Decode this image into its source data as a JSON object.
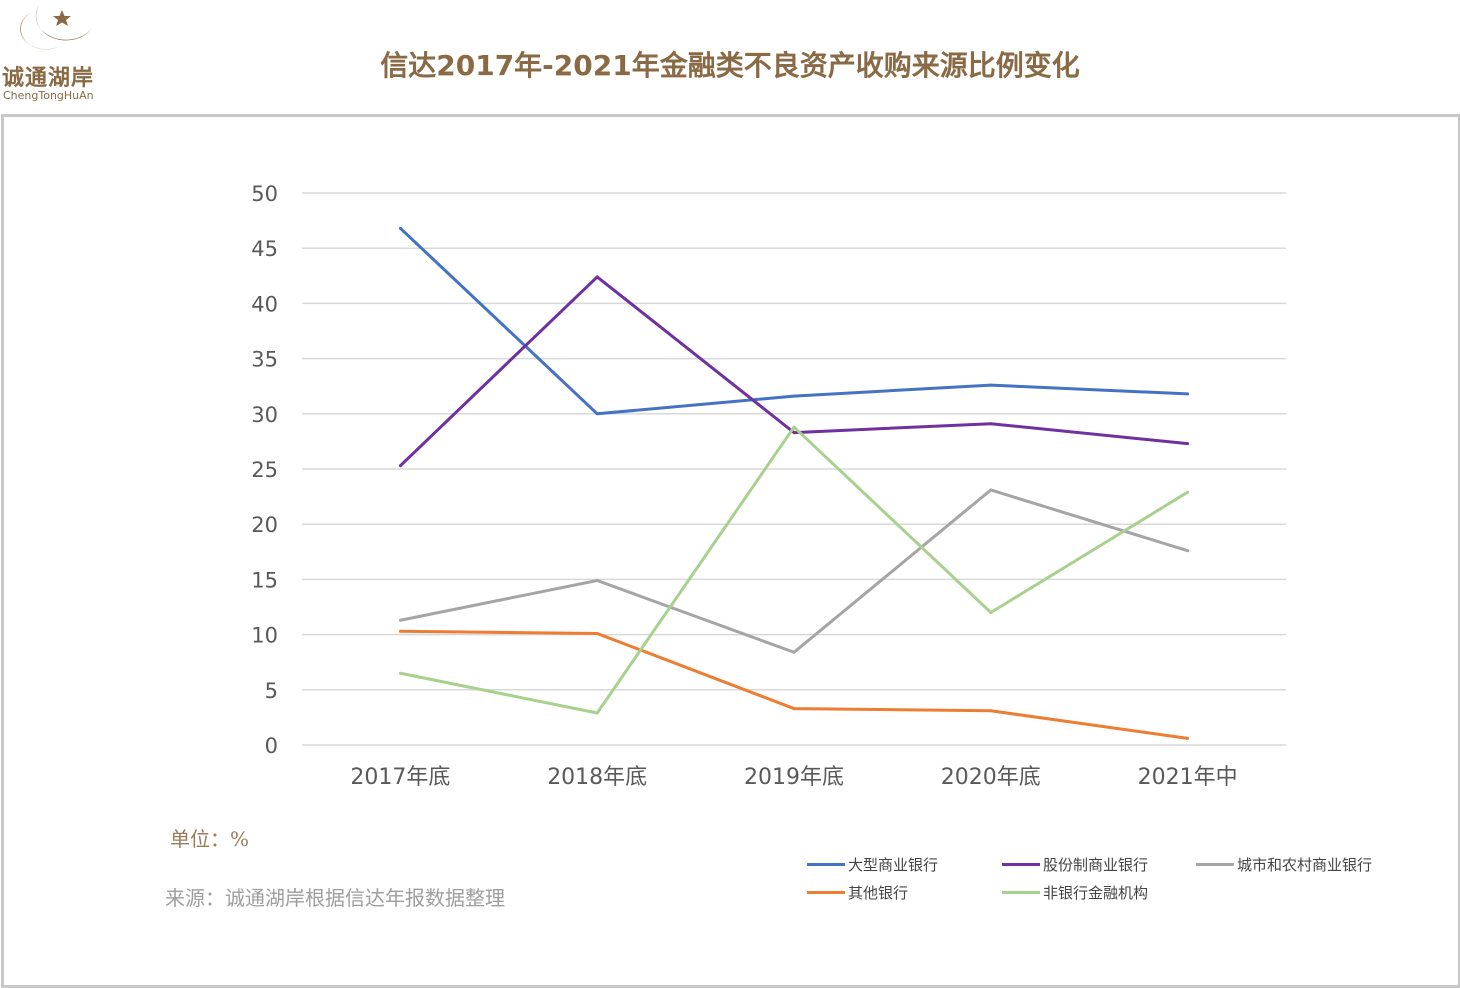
{
  "logo": {
    "name": "诚通湖岸",
    "subtitle": "ChengTongHuAn"
  },
  "header": {
    "title": "信达2017年-2021年金融类不良资产收购来源比例变化"
  },
  "notes": {
    "unit": "单位：%",
    "source": "来源：诚通湖岸根据信达年报数据整理"
  },
  "colors": {
    "brand": "#8a6a44",
    "grid": "#d9d9d9",
    "axis_text": "#595959"
  },
  "chart_data": {
    "type": "line",
    "title": "",
    "xlabel": "",
    "ylabel": "",
    "categories": [
      "2017年底",
      "2018年底",
      "2019年底",
      "2020年底",
      "2021年中"
    ],
    "ylim": [
      0,
      50
    ],
    "yticks": [
      0,
      5,
      10,
      15,
      20,
      25,
      30,
      35,
      40,
      45,
      50
    ],
    "grid": true,
    "legend_position": "bottom-right",
    "series": [
      {
        "name": "大型商业银行",
        "color": "#4472c4",
        "values": [
          46.8,
          30.0,
          31.6,
          32.6,
          31.8
        ]
      },
      {
        "name": "股份制商业银行",
        "color": "#7030a0",
        "values": [
          25.3,
          42.4,
          28.3,
          29.1,
          27.3
        ]
      },
      {
        "name": "城市和农村商业银行",
        "color": "#a5a5a5",
        "values": [
          11.3,
          14.9,
          8.4,
          23.1,
          17.6
        ]
      },
      {
        "name": "其他银行",
        "color": "#ed7d31",
        "values": [
          10.3,
          10.1,
          3.3,
          3.1,
          0.6
        ]
      },
      {
        "name": "非银行金融机构",
        "color": "#a9d18e",
        "values": [
          6.5,
          2.9,
          28.8,
          12.0,
          22.9
        ]
      }
    ]
  }
}
